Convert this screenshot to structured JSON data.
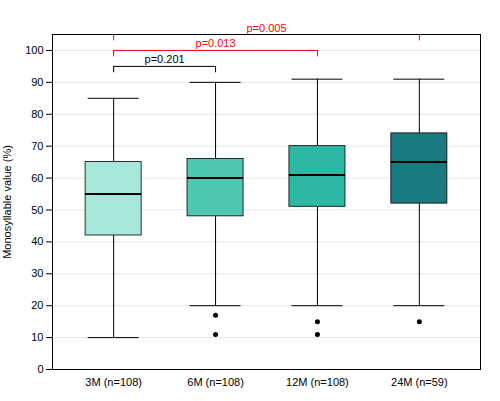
{
  "chart_data": {
    "type": "box",
    "ylabel": "Monosyllable value (%)",
    "categories": [
      "3M (n=108)",
      "6M (n=108)",
      "12M (n=108)",
      "24M (n=59)"
    ],
    "colors": [
      "#a8e8dc",
      "#4cc8b0",
      "#2db8a4",
      "#1a7a80"
    ],
    "boxes": [
      {
        "q1": 42,
        "median": 55,
        "q3": 65,
        "whisker_low": 10,
        "whisker_high": 85,
        "outliers": []
      },
      {
        "q1": 48,
        "median": 60,
        "q3": 66,
        "whisker_low": 20,
        "whisker_high": 90,
        "outliers": [
          17,
          11
        ]
      },
      {
        "q1": 51,
        "median": 61,
        "q3": 70,
        "whisker_low": 20,
        "whisker_high": 91,
        "outliers": [
          15,
          11
        ]
      },
      {
        "q1": 52,
        "median": 65,
        "q3": 74,
        "whisker_low": 20,
        "whisker_high": 91,
        "outliers": [
          15
        ]
      }
    ],
    "ylim": [
      0,
      105
    ],
    "yticks": [
      0,
      10,
      20,
      30,
      40,
      50,
      60,
      70,
      80,
      90,
      100
    ],
    "grid": true,
    "annotations": [
      {
        "x1": "3M (n=108)",
        "x2": "6M (n=108)",
        "y": 95,
        "label": "p=0.201",
        "color": "black"
      },
      {
        "x1": "3M (n=108)",
        "x2": "12M (n=108)",
        "y": 100,
        "label": "p=0.013",
        "color": "red"
      },
      {
        "x1": "3M (n=108)",
        "x2": "24M (n=59)",
        "y": 105,
        "label": "p=0.005",
        "color": "red"
      }
    ]
  }
}
